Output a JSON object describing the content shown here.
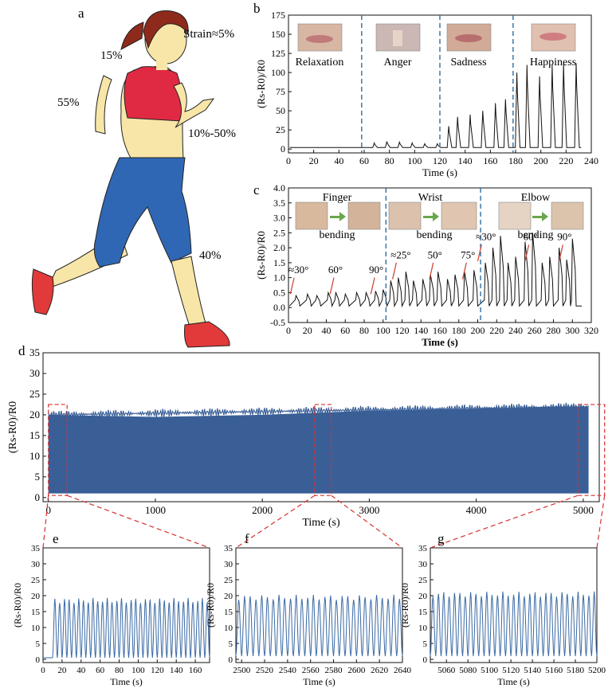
{
  "panel_labels": {
    "a": "a",
    "b": "b",
    "c": "c",
    "d": "d",
    "e": "e",
    "f": "f",
    "g": "g"
  },
  "figure_a": {
    "strain_labels": [
      "Strain≈5%",
      "15%",
      "55%",
      "10%-50%",
      "40%"
    ],
    "colors": {
      "hair": "#8e2a1c",
      "skin": "#f7e6a8",
      "top": "#e02a44",
      "shorts": "#2f67b4",
      "shoe": "#e23a3a",
      "outline": "#222222"
    }
  },
  "chart_data": [
    {
      "id": "b",
      "type": "line",
      "xlabel": "Time (s)",
      "ylabel": "(Rs-R0)/R0",
      "xlim": [
        0,
        240
      ],
      "ylim": [
        -5,
        175
      ],
      "xticks": [
        0,
        20,
        40,
        60,
        80,
        100,
        120,
        140,
        160,
        180,
        200,
        220,
        240
      ],
      "yticks": [
        0,
        25,
        50,
        75,
        100,
        125,
        150,
        175
      ],
      "dividers": [
        58,
        120,
        178
      ],
      "photo_labels": [
        "Relaxation",
        "Anger",
        "Sadness",
        "Happiness"
      ],
      "line_color": "#111111",
      "baseline": 2,
      "peaks": [
        [
          68,
          8
        ],
        [
          78,
          10
        ],
        [
          88,
          9
        ],
        [
          98,
          8
        ],
        [
          108,
          7
        ],
        [
          118,
          7
        ],
        [
          127,
          30
        ],
        [
          134,
          42
        ],
        [
          144,
          45
        ],
        [
          154,
          50
        ],
        [
          164,
          60
        ],
        [
          172,
          65
        ],
        [
          181,
          100
        ],
        [
          189,
          110
        ],
        [
          199,
          95
        ],
        [
          209,
          110
        ],
        [
          218,
          112
        ],
        [
          228,
          112
        ]
      ]
    },
    {
      "id": "c",
      "type": "line",
      "xlabel": "Time (s)",
      "ylabel": "(Rs-R0)/R0",
      "xlim": [
        0,
        320
      ],
      "ylim": [
        -0.5,
        4.0
      ],
      "xticks": [
        0,
        20,
        40,
        60,
        80,
        100,
        120,
        140,
        160,
        180,
        200,
        220,
        240,
        260,
        280,
        300,
        320
      ],
      "yticks": [
        -0.5,
        0.0,
        0.5,
        1.0,
        1.5,
        2.0,
        2.5,
        3.0,
        3.5,
        4.0
      ],
      "dividers": [
        103,
        203
      ],
      "photo_labels": [
        "Finger",
        "bending",
        "Wrist",
        "bending",
        "Elbow",
        "bending"
      ],
      "angle_labels": [
        "≈30°",
        "60°",
        "90°",
        "≈25°",
        "50°",
        "75°",
        "≈30°",
        "60°",
        "90°"
      ],
      "line_color": "#111111",
      "peaks": [
        [
          8,
          0.4
        ],
        [
          20,
          0.45
        ],
        [
          30,
          0.4
        ],
        [
          42,
          0.5
        ],
        [
          50,
          0.5
        ],
        [
          60,
          0.45
        ],
        [
          72,
          0.5
        ],
        [
          82,
          0.5
        ],
        [
          92,
          0.55
        ],
        [
          100,
          0.6
        ],
        [
          108,
          0.9
        ],
        [
          116,
          1.0
        ],
        [
          124,
          1.2
        ],
        [
          132,
          0.9
        ],
        [
          142,
          0.95
        ],
        [
          150,
          1.1
        ],
        [
          158,
          1.2
        ],
        [
          168,
          0.95
        ],
        [
          176,
          1.1
        ],
        [
          186,
          1.2
        ],
        [
          196,
          1.25
        ],
        [
          208,
          1.5
        ],
        [
          216,
          2.0
        ],
        [
          224,
          2.4
        ],
        [
          232,
          1.5
        ],
        [
          240,
          1.7
        ],
        [
          250,
          2.2
        ],
        [
          258,
          2.5
        ],
        [
          268,
          1.5
        ],
        [
          276,
          1.7
        ],
        [
          286,
          2.0
        ],
        [
          294,
          1.6
        ],
        [
          300,
          2.3
        ]
      ]
    },
    {
      "id": "d",
      "type": "area",
      "xlabel": "Time (s)",
      "ylabel": "(Rs-R0)/R0",
      "xlim": [
        -50,
        5150
      ],
      "ylim": [
        -1,
        35
      ],
      "xticks": [
        0,
        1000,
        2000,
        3000,
        4000,
        5000
      ],
      "yticks": [
        0,
        5,
        10,
        15,
        20,
        25,
        30,
        35
      ],
      "fill_color": "#3a5f97",
      "series": {
        "x": [
          0,
          1000,
          2000,
          2500,
          3000,
          4000,
          4800,
          5050
        ],
        "upper": [
          20,
          19.5,
          20,
          20.5,
          21,
          21.5,
          22,
          22
        ],
        "lower": [
          1,
          1,
          1,
          1,
          1,
          1,
          1,
          1
        ]
      },
      "zoom_boxes": [
        [
          0,
          175
        ],
        [
          2490,
          2645
        ],
        [
          4950,
          5200
        ]
      ]
    },
    {
      "id": "e",
      "type": "line",
      "xlabel": "Time (s)",
      "ylabel": "(Rs-R0)/R0",
      "xlim": [
        0,
        175
      ],
      "ylim": [
        -1,
        35
      ],
      "xticks": [
        0,
        20,
        40,
        60,
        80,
        100,
        120,
        140,
        160
      ],
      "yticks": [
        0,
        5,
        10,
        15,
        20,
        25,
        30,
        35
      ],
      "line_color": "#3a6aa5",
      "wave": {
        "start": 10,
        "end": 175,
        "period": 5.0,
        "peak": 18.5,
        "trough": 0.5,
        "pre_level": 0.5
      }
    },
    {
      "id": "f",
      "type": "line",
      "xlabel": "Time (s)",
      "ylabel": "(Rs-R0)/R0",
      "xlim": [
        2495,
        2640
      ],
      "ylim": [
        -1,
        35
      ],
      "xticks": [
        2500,
        2520,
        2540,
        2560,
        2580,
        2600,
        2620,
        2640
      ],
      "yticks": [
        0,
        5,
        10,
        15,
        20,
        25,
        30,
        35
      ],
      "line_color": "#3a6aa5",
      "wave": {
        "start": 2495,
        "end": 2640,
        "period": 5.0,
        "peak": 19.5,
        "trough": 1.0
      }
    },
    {
      "id": "g",
      "type": "line",
      "xlabel": "Time (s)",
      "ylabel": "(Rs-R0)/R0",
      "xlim": [
        5045,
        5200
      ],
      "ylim": [
        -1,
        35
      ],
      "xticks": [
        5060,
        5080,
        5100,
        5120,
        5140,
        5160,
        5180,
        5200
      ],
      "xtick_labels": [
        "5060",
        "5080",
        "5100",
        "5120",
        "5140",
        "5160",
        "5180",
        "5200"
      ],
      "yticks": [
        0,
        5,
        10,
        15,
        20,
        25,
        30,
        35
      ],
      "line_color": "#3a6aa5",
      "wave": {
        "start": 5045,
        "end": 5200,
        "period": 5.0,
        "peak": 20.5,
        "trough": 1.0
      }
    }
  ]
}
